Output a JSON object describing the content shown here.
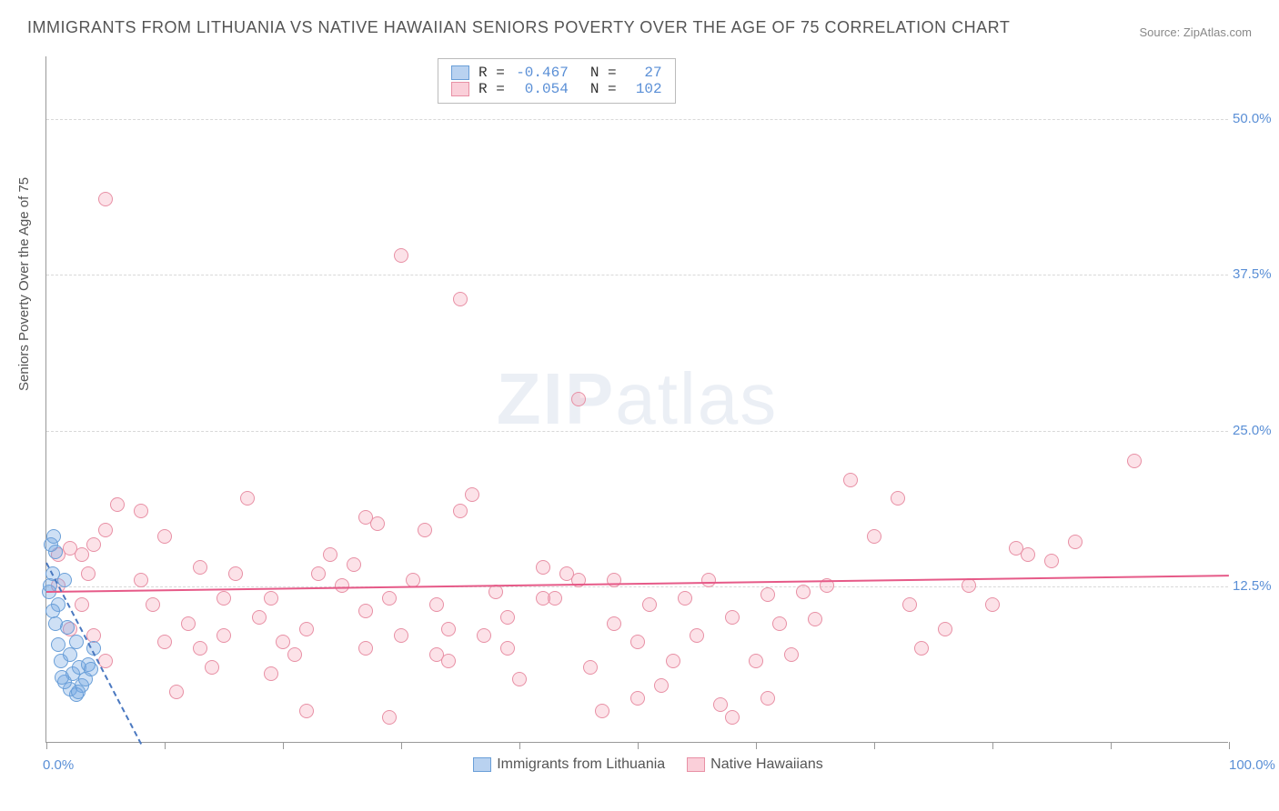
{
  "title": "IMMIGRANTS FROM LITHUANIA VS NATIVE HAWAIIAN SENIORS POVERTY OVER THE AGE OF 75 CORRELATION CHART",
  "source": "Source: ZipAtlas.com",
  "y_label": "Seniors Poverty Over the Age of 75",
  "watermark_zip": "ZIP",
  "watermark_atlas": "atlas",
  "chart": {
    "type": "scatter",
    "xlim": [
      0,
      100
    ],
    "ylim": [
      0,
      55
    ],
    "x_tick_positions": [
      0,
      10,
      20,
      30,
      40,
      50,
      60,
      70,
      80,
      90,
      100
    ],
    "y_grid": [
      12.5,
      25.0,
      37.5,
      50.0
    ],
    "y_tick_labels": [
      "12.5%",
      "25.0%",
      "37.5%",
      "50.0%"
    ],
    "x_left_label": "0.0%",
    "x_right_label": "100.0%",
    "background_color": "#ffffff",
    "grid_color": "#d8d8d8",
    "axis_color": "#999999",
    "tick_label_color": "#5a8fd6"
  },
  "legend_top": {
    "rows": [
      {
        "swatch": "blue",
        "r_label": "R =",
        "r_value": "-0.467",
        "n_label": "N =",
        "n_value": "27"
      },
      {
        "swatch": "pink",
        "r_label": "R =",
        "r_value": "0.054",
        "n_label": "N =",
        "n_value": "102"
      }
    ]
  },
  "legend_bottom": {
    "items": [
      {
        "swatch": "blue",
        "label": "Immigrants from Lithuania"
      },
      {
        "swatch": "pink",
        "label": "Native Hawaiians"
      }
    ]
  },
  "series": {
    "blue": {
      "color_fill": "rgba(115,165,225,0.35)",
      "color_stroke": "#6a9fd8",
      "marker_size": 16,
      "trend": {
        "x1": 0,
        "y1": 14.5,
        "x2": 8,
        "y2": 0,
        "style": "dashed",
        "color": "#4a78c0"
      },
      "points": [
        [
          0.2,
          12.0
        ],
        [
          0.3,
          12.5
        ],
        [
          0.5,
          13.5
        ],
        [
          0.8,
          15.2
        ],
        [
          0.4,
          15.8
        ],
        [
          0.6,
          16.5
        ],
        [
          1.0,
          11.0
        ],
        [
          1.5,
          13.0
        ],
        [
          1.2,
          6.5
        ],
        [
          1.8,
          9.2
        ],
        [
          2.0,
          7.0
        ],
        [
          2.2,
          5.5
        ],
        [
          2.5,
          8.0
        ],
        [
          2.8,
          6.0
        ],
        [
          3.0,
          4.5
        ],
        [
          3.3,
          5.0
        ],
        [
          2.0,
          4.2
        ],
        [
          1.5,
          4.8
        ],
        [
          2.5,
          3.8
        ],
        [
          3.5,
          6.2
        ],
        [
          1.0,
          7.8
        ],
        [
          0.8,
          9.5
        ],
        [
          0.5,
          10.5
        ],
        [
          4.0,
          7.5
        ],
        [
          3.8,
          5.8
        ],
        [
          1.3,
          5.2
        ],
        [
          2.7,
          4.0
        ]
      ]
    },
    "pink": {
      "color_fill": "rgba(245,160,180,0.30)",
      "color_stroke": "#e890a5",
      "marker_size": 16,
      "trend": {
        "x1": 0,
        "y1": 12.2,
        "x2": 100,
        "y2": 13.5,
        "style": "solid",
        "color": "#e65a88"
      },
      "points": [
        [
          5,
          43.5
        ],
        [
          30,
          39.0
        ],
        [
          35,
          35.5
        ],
        [
          45,
          27.5
        ],
        [
          92,
          22.5
        ],
        [
          1,
          12.5
        ],
        [
          2,
          15.5
        ],
        [
          3,
          15.0
        ],
        [
          4,
          15.8
        ],
        [
          3.5,
          13.5
        ],
        [
          5,
          17.0
        ],
        [
          6,
          19.0
        ],
        [
          8,
          18.5
        ],
        [
          10,
          16.5
        ],
        [
          8,
          13.0
        ],
        [
          9,
          11.0
        ],
        [
          10,
          8.0
        ],
        [
          11,
          4.0
        ],
        [
          12,
          9.5
        ],
        [
          13,
          14.0
        ],
        [
          14,
          6.0
        ],
        [
          15,
          8.5
        ],
        [
          16,
          13.5
        ],
        [
          17,
          19.5
        ],
        [
          18,
          10.0
        ],
        [
          19,
          5.5
        ],
        [
          20,
          8.0
        ],
        [
          21,
          7.0
        ],
        [
          22,
          9.0
        ],
        [
          22,
          2.5
        ],
        [
          23,
          13.5
        ],
        [
          24,
          15.0
        ],
        [
          25,
          12.5
        ],
        [
          26,
          14.2
        ],
        [
          27,
          18.0
        ],
        [
          27,
          10.5
        ],
        [
          27,
          7.5
        ],
        [
          28,
          17.5
        ],
        [
          29,
          11.5
        ],
        [
          29,
          2.0
        ],
        [
          30,
          8.5
        ],
        [
          31,
          13.0
        ],
        [
          32,
          17.0
        ],
        [
          33,
          7.0
        ],
        [
          34,
          6.5
        ],
        [
          34,
          9.0
        ],
        [
          35,
          18.5
        ],
        [
          36,
          19.8
        ],
        [
          37,
          8.5
        ],
        [
          38,
          12.0
        ],
        [
          39,
          10.0
        ],
        [
          42,
          14.0
        ],
        [
          43,
          11.5
        ],
        [
          44,
          13.5
        ],
        [
          45,
          13.0
        ],
        [
          46,
          6.0
        ],
        [
          47,
          2.5
        ],
        [
          48,
          9.5
        ],
        [
          50,
          8.0
        ],
        [
          51,
          11.0
        ],
        [
          52,
          4.5
        ],
        [
          54,
          11.5
        ],
        [
          55,
          8.5
        ],
        [
          56,
          13.0
        ],
        [
          57,
          3.0
        ],
        [
          58,
          10.0
        ],
        [
          60,
          6.5
        ],
        [
          61,
          11.8
        ],
        [
          62,
          9.5
        ],
        [
          63,
          7.0
        ],
        [
          64,
          12.0
        ],
        [
          65,
          9.8
        ],
        [
          66,
          12.5
        ],
        [
          68,
          21.0
        ],
        [
          70,
          16.5
        ],
        [
          72,
          19.5
        ],
        [
          73,
          11.0
        ],
        [
          74,
          7.5
        ],
        [
          76,
          9.0
        ],
        [
          78,
          12.5
        ],
        [
          80,
          11.0
        ],
        [
          82,
          15.5
        ],
        [
          83,
          15.0
        ],
        [
          85,
          14.5
        ],
        [
          87,
          16.0
        ],
        [
          61,
          3.5
        ],
        [
          58,
          2.0
        ],
        [
          53,
          6.5
        ],
        [
          50,
          3.5
        ],
        [
          40,
          5.0
        ],
        [
          42,
          11.5
        ],
        [
          48,
          13.0
        ],
        [
          39,
          7.5
        ],
        [
          33,
          11.0
        ],
        [
          15,
          11.5
        ],
        [
          13,
          7.5
        ],
        [
          19,
          11.5
        ],
        [
          3,
          11.0
        ],
        [
          4,
          8.5
        ],
        [
          2,
          9.0
        ],
        [
          5,
          6.5
        ],
        [
          1,
          15.0
        ]
      ]
    }
  }
}
